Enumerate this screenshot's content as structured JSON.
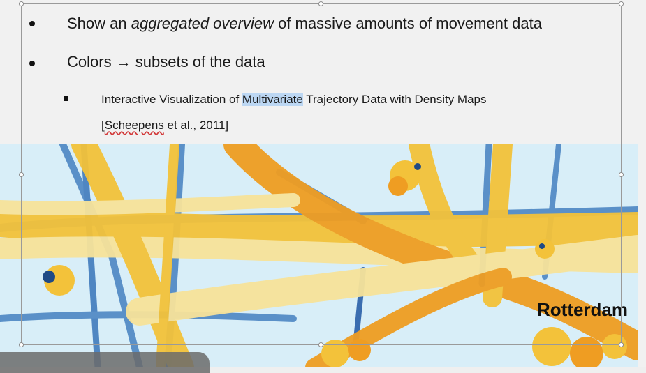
{
  "slide": {
    "bullets": [
      {
        "pre": "Show an ",
        "em": "aggregated overview",
        "post": " of massive amounts of movement data"
      },
      {
        "text": "Colors → subsets of the data"
      }
    ],
    "sub_bullet": {
      "pre": "Interactive Visualization of ",
      "highlighted": "Multivariate",
      "post": " Trajectory Data with Density Maps",
      "cite_open": "[",
      "cite_name": "Scheepens",
      "cite_rest": " et al., 2011]"
    },
    "map": {
      "label": "Rotterdam",
      "colors": {
        "water": "#d8eef8",
        "yellow": "#f3c23a",
        "orange": "#ef9d22",
        "pale": "#f7e39a",
        "blue": "#5a90c8",
        "navy": "#1f4a86"
      }
    }
  }
}
